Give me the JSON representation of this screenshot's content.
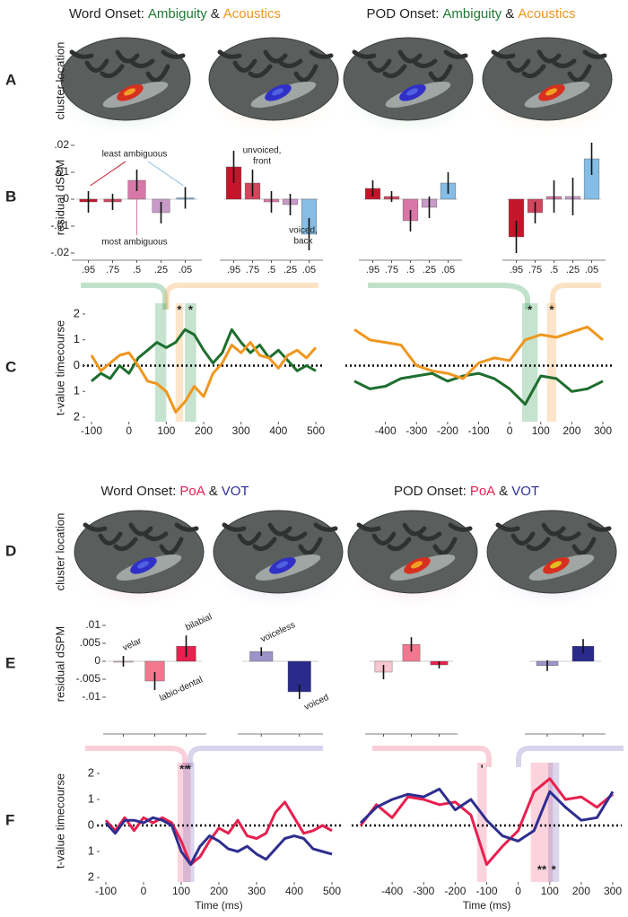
{
  "titles": [
    {
      "lead": "Word Onset:",
      "first": "Ambiguity",
      "joiner": "&",
      "second": "Acoustics",
      "colors": [
        "#1e7a34",
        "#f0961e"
      ]
    },
    {
      "lead": "POD Onset:",
      "first": "Ambiguity",
      "joiner": "&",
      "second": "Acoustics",
      "colors": [
        "#1e7a34",
        "#f0961e"
      ]
    },
    {
      "lead": "Word Onset:",
      "first": "PoA",
      "joiner": "&",
      "second": "VOT",
      "colors": [
        "#e8204f",
        "#2e2e99"
      ]
    },
    {
      "lead": "POD Onset:",
      "first": "PoA",
      "joiner": "&",
      "second": "VOT",
      "colors": [
        "#e8204f",
        "#2e2e99"
      ]
    }
  ],
  "panel_letters": [
    "A",
    "B",
    "C",
    "D",
    "E",
    "F"
  ],
  "row_labels": [
    "cluster location",
    "residual dSPM",
    "t-value timecourse",
    "cluster location",
    "residual dSPM",
    "t-value timecourse"
  ],
  "chart_data": [
    {
      "type": "bar",
      "categories": [
        ".95",
        ".75",
        ".5",
        ".25",
        ".05"
      ],
      "values": [
        -0.001,
        -0.001,
        0.007,
        -0.005,
        0.0005
      ],
      "errors": [
        0.004,
        0.003,
        0.004,
        0.004,
        0.004
      ],
      "colors": [
        "#c4162a",
        "#d0475e",
        "#d878a8",
        "#c89ac8",
        "#86bde6"
      ],
      "ylim": [
        -0.02,
        0.02
      ],
      "yticks": [
        {
          "value": 0.02,
          "label": ".02"
        },
        {
          "value": 0.01,
          "label": ".01"
        },
        0,
        {
          "value": -0.01,
          "label": "-.01"
        },
        {
          "value": -0.02,
          "label": "-.02"
        }
      ],
      "annotations": [
        {
          "lines": [
            "least ambiguous"
          ],
          "color": "#222222"
        },
        {
          "lines": [
            "most ambiguous"
          ],
          "color": "#222222"
        }
      ]
    },
    {
      "type": "bar",
      "categories": [
        ".95",
        ".75",
        ".5",
        ".25",
        ".05"
      ],
      "values": [
        0.012,
        0.006,
        -0.001,
        -0.002,
        -0.013
      ],
      "errors": [
        0.006,
        0.005,
        0.004,
        0.004,
        0.006
      ],
      "colors": [
        "#c4162a",
        "#d0475e",
        "#d878a8",
        "#c89ac8",
        "#86bde6"
      ],
      "ylim": [
        -0.02,
        0.02
      ],
      "annotations": [
        {
          "lines": [
            "unvoiced,",
            "front"
          ],
          "color": "#b01a2a"
        },
        {
          "lines": [
            "voiced,",
            "back"
          ],
          "color": "#86bde6"
        }
      ]
    },
    {
      "type": "bar",
      "categories": [
        ".95",
        ".75",
        ".5",
        ".25",
        ".05"
      ],
      "values": [
        0.004,
        0.001,
        -0.008,
        -0.003,
        0.006
      ],
      "errors": [
        0.003,
        0.002,
        0.004,
        0.004,
        0.004
      ],
      "colors": [
        "#c4162a",
        "#d0475e",
        "#d878a8",
        "#c89ac8",
        "#86bde6"
      ],
      "ylim": [
        -0.02,
        0.02
      ]
    },
    {
      "type": "bar",
      "categories": [
        ".95",
        ".75",
        ".5",
        ".25",
        ".05"
      ],
      "values": [
        -0.014,
        -0.005,
        0.001,
        0.001,
        0.015
      ],
      "errors": [
        0.006,
        0.004,
        0.006,
        0.007,
        0.006
      ],
      "colors": [
        "#c4162a",
        "#d0475e",
        "#d878a8",
        "#c89ac8",
        "#86bde6"
      ],
      "ylim": [
        -0.02,
        0.02
      ]
    },
    {
      "type": "line",
      "x": [
        -100,
        -75,
        -50,
        -25,
        0,
        25,
        50,
        75,
        100,
        125,
        150,
        175,
        200,
        225,
        250,
        275,
        300,
        325,
        350,
        375,
        400,
        425,
        450,
        475,
        500
      ],
      "series": [
        {
          "name": "Ambiguity",
          "color": "#1e6e2e",
          "values": [
            -0.6,
            -0.3,
            -0.5,
            0.0,
            -0.3,
            0.3,
            0.6,
            0.9,
            0.7,
            0.9,
            1.4,
            1.2,
            0.6,
            0.1,
            0.5,
            1.4,
            0.9,
            0.5,
            0.8,
            0.3,
            0.6,
            0.2,
            -0.2,
            0.0,
            -0.2
          ]
        },
        {
          "name": "Acoustics",
          "color": "#f0961e",
          "values": [
            0.4,
            -0.2,
            0.1,
            0.4,
            0.5,
            0.0,
            -0.6,
            -0.7,
            -1.0,
            -1.8,
            -1.4,
            -0.8,
            -1.2,
            -0.3,
            0.1,
            0.8,
            0.5,
            0.9,
            0.4,
            0.3,
            -0.1,
            0.4,
            0.6,
            0.3,
            0.7
          ]
        }
      ],
      "xlim": [
        -100,
        500
      ],
      "xticks": [
        -100,
        0,
        100,
        200,
        300,
        400,
        500
      ],
      "ylim": [
        -2,
        2
      ],
      "yticks": [
        2,
        1,
        0,
        {
          "value": -1,
          "label": "1"
        },
        {
          "value": -2,
          "label": "2"
        }
      ],
      "highlights": [
        {
          "range": [
            70,
            100
          ],
          "color": "#2e9a50"
        },
        {
          "range": [
            125,
            145
          ],
          "color": "#f5a040",
          "label": "*"
        },
        {
          "range": [
            150,
            180
          ],
          "color": "#2e9a50",
          "label": "*"
        }
      ]
    },
    {
      "type": "line",
      "x": [
        -500,
        -450,
        -400,
        -350,
        -300,
        -250,
        -200,
        -150,
        -100,
        -50,
        0,
        50,
        100,
        150,
        200,
        250,
        300
      ],
      "series": [
        {
          "name": "Ambiguity",
          "color": "#1e6e2e",
          "values": [
            -0.6,
            -0.9,
            -0.8,
            -0.5,
            -0.4,
            -0.3,
            -0.6,
            -0.4,
            -0.3,
            -0.5,
            -0.9,
            -1.5,
            -0.4,
            -0.5,
            -1.0,
            -0.9,
            -0.6
          ]
        },
        {
          "name": "Acoustics",
          "color": "#f0961e",
          "values": [
            1.4,
            1.0,
            0.9,
            0.8,
            0.0,
            -0.2,
            -0.3,
            -0.5,
            0.1,
            0.3,
            0.2,
            1.0,
            1.2,
            1.1,
            1.3,
            1.5,
            1.0
          ]
        }
      ],
      "xlim": [
        -500,
        300
      ],
      "xticks": [
        -400,
        -300,
        -200,
        -100,
        0,
        100,
        200,
        300
      ],
      "ylim": [
        -2,
        2
      ],
      "highlights": [
        {
          "range": [
            40,
            90
          ],
          "color": "#2e9a50",
          "label": "*"
        },
        {
          "range": [
            120,
            150
          ],
          "color": "#f5a040",
          "label": "*"
        }
      ]
    },
    {
      "type": "bar",
      "categories": [
        "velar",
        "labio-dental",
        "bilabial"
      ],
      "values": [
        0,
        -0.0055,
        0.0042
      ],
      "errors": [
        0.0015,
        0.0025,
        0.003
      ],
      "colors": [
        "#f7c6d0",
        "#f0788f",
        "#e8204f"
      ],
      "ylim": [
        -0.01,
        0.01
      ],
      "yticks": [
        {
          "value": 0.01,
          "label": ".01"
        },
        {
          "value": 0.005,
          "label": ".005"
        },
        0,
        {
          "value": -0.005,
          "label": "-.005"
        },
        {
          "value": -0.01,
          "label": "-.01"
        }
      ]
    },
    {
      "type": "bar",
      "categories": [
        "voiceless",
        "voiced"
      ],
      "values": [
        0.0027,
        -0.0085
      ],
      "errors": [
        0.0012,
        0.002
      ],
      "colors": [
        "#9a94c8",
        "#2a2a8a"
      ],
      "ylim": [
        -0.01,
        0.01
      ]
    },
    {
      "type": "bar",
      "categories": [
        null,
        null,
        null
      ],
      "values": [
        -0.003,
        0.0047,
        -0.001
      ],
      "errors": [
        0.002,
        0.002,
        0.001
      ],
      "colors": [
        "#f7c6d0",
        "#f0788f",
        "#e8204f"
      ],
      "ylim": [
        -0.01,
        0.01
      ]
    },
    {
      "type": "bar",
      "categories": [
        null,
        null
      ],
      "values": [
        -0.0012,
        0.0042
      ],
      "errors": [
        0.0015,
        0.002
      ],
      "colors": [
        "#9a94c8",
        "#2a2a8a"
      ],
      "ylim": [
        -0.01,
        0.01
      ]
    },
    {
      "type": "line",
      "x": [
        -100,
        -75,
        -50,
        -25,
        0,
        25,
        50,
        75,
        100,
        125,
        150,
        175,
        200,
        225,
        250,
        275,
        300,
        325,
        350,
        375,
        400,
        425,
        450,
        475,
        500
      ],
      "series": [
        {
          "name": "PoA",
          "color": "#e8204f",
          "values": [
            0.2,
            -0.2,
            0.3,
            -0.2,
            0.3,
            0.1,
            0.3,
            0.1,
            -0.6,
            -1.5,
            -1.2,
            -0.6,
            -0.1,
            -0.3,
            0.2,
            -0.4,
            -0.5,
            -0.3,
            0.5,
            0.9,
            0.3,
            -0.3,
            -0.2,
            0.0,
            -0.2
          ]
        },
        {
          "name": "VOT",
          "color": "#2e2e8f",
          "values": [
            0.1,
            -0.3,
            0.2,
            0.2,
            0.1,
            0.3,
            0.2,
            0.0,
            -1.0,
            -1.5,
            -0.8,
            -0.4,
            -0.6,
            -0.9,
            -1.0,
            -0.8,
            -1.1,
            -1.3,
            -0.9,
            -0.5,
            -0.4,
            -0.5,
            -0.9,
            -1.0,
            -1.1
          ]
        }
      ],
      "xlim": [
        -100,
        500
      ],
      "xticks": [
        -100,
        0,
        100,
        200,
        300,
        400,
        500
      ],
      "ylim": [
        -2,
        2
      ],
      "yticks": [
        2,
        1,
        0,
        {
          "value": -1,
          "label": "1"
        },
        {
          "value": -2,
          "label": "2"
        }
      ],
      "xlabel": "Time (ms)",
      "highlights": [
        {
          "range": [
            90,
            125
          ],
          "color": "#f06080",
          "label": "**"
        },
        {
          "range": [
            105,
            135
          ],
          "color": "#8070c0",
          "label": "*"
        }
      ]
    },
    {
      "type": "line",
      "x": [
        -500,
        -450,
        -400,
        -350,
        -300,
        -250,
        -200,
        -150,
        -100,
        -50,
        0,
        50,
        100,
        150,
        200,
        250,
        300
      ],
      "series": [
        {
          "name": "PoA",
          "color": "#e8204f",
          "values": [
            0.0,
            0.8,
            0.3,
            1.1,
            1.0,
            0.8,
            0.9,
            0.4,
            -1.5,
            -0.8,
            -0.2,
            1.3,
            1.8,
            1.0,
            1.1,
            0.7,
            1.2
          ]
        },
        {
          "name": "VOT",
          "color": "#2e2e8f",
          "values": [
            0.1,
            0.7,
            1.0,
            1.2,
            1.1,
            1.4,
            0.6,
            1.0,
            0.2,
            -0.4,
            -0.6,
            -0.2,
            1.3,
            0.7,
            0.2,
            0.3,
            1.3
          ]
        }
      ],
      "xlim": [
        -500,
        300
      ],
      "xticks": [
        -400,
        -300,
        -200,
        -100,
        0,
        100,
        200,
        300
      ],
      "ylim": [
        -2,
        2
      ],
      "xlabel": "Time (ms)",
      "highlights": [
        {
          "range": [
            -130,
            -100
          ],
          "color": "#f06080",
          "label": "'"
        },
        {
          "range": [
            40,
            110
          ],
          "color": "#f06080",
          "label": "**"
        },
        {
          "range": [
            95,
            130
          ],
          "color": "#8070c0",
          "label": "*"
        }
      ]
    }
  ]
}
